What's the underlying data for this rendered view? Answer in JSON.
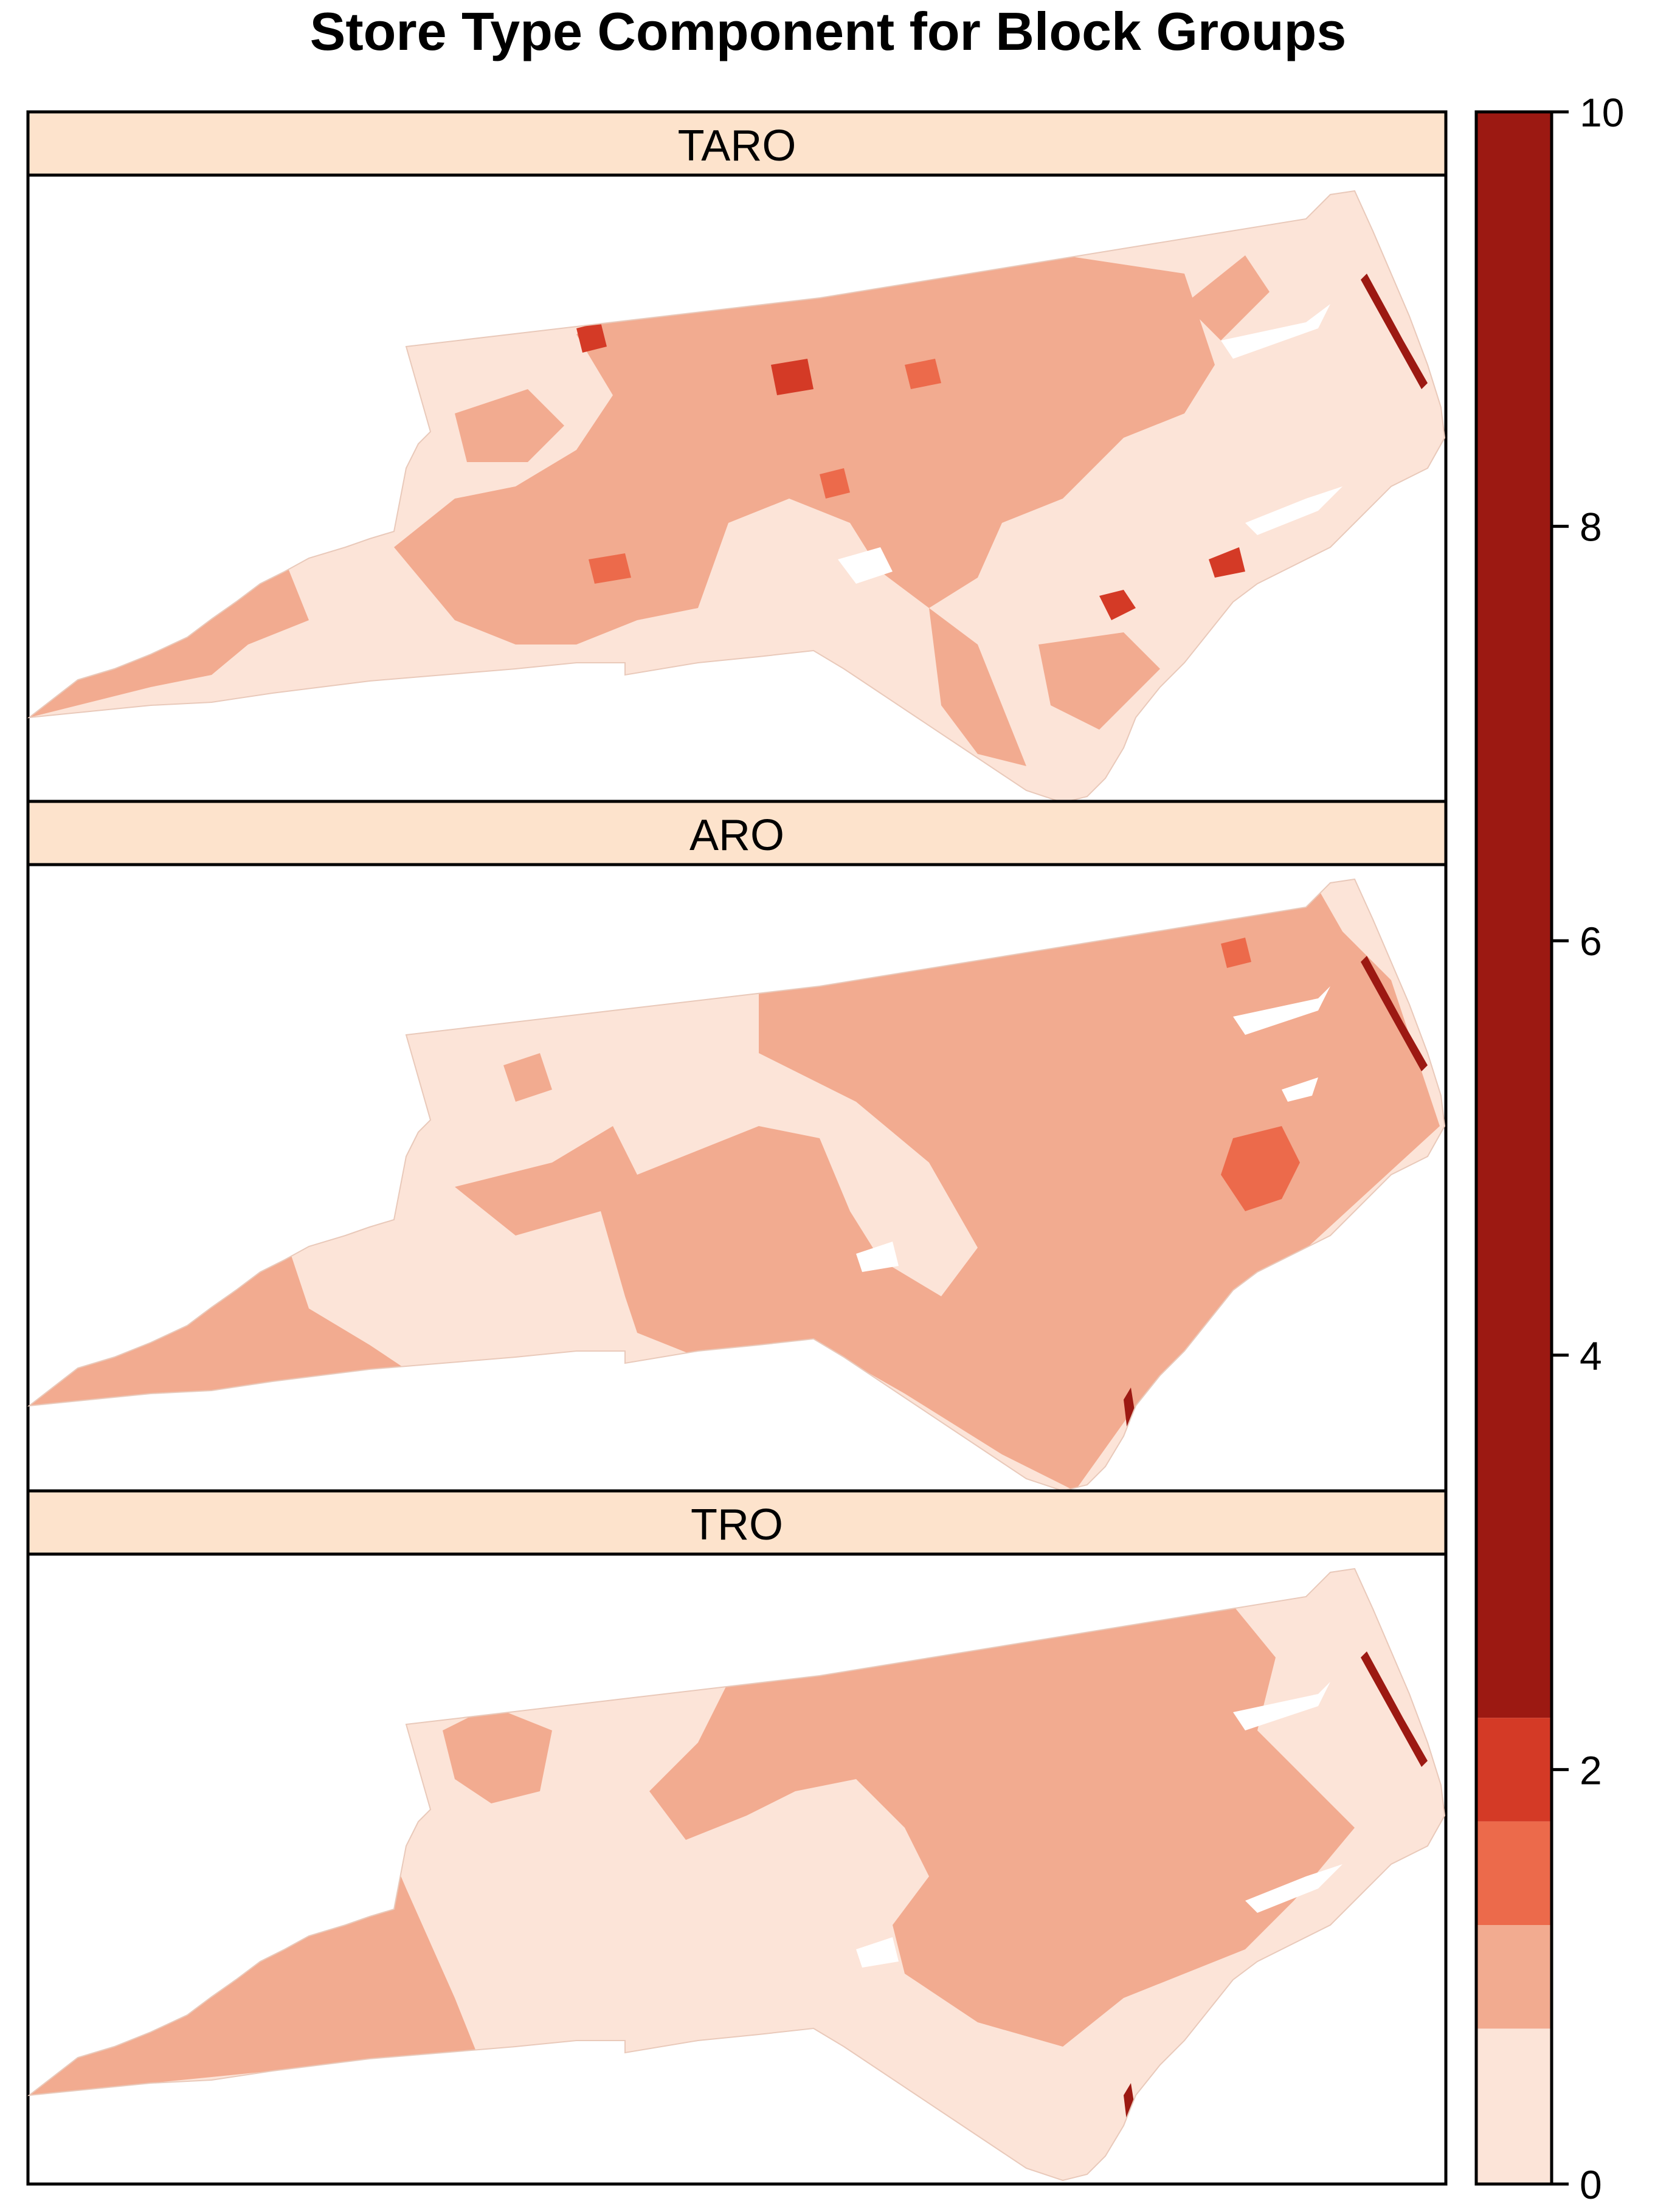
{
  "title": "Store Type Component for Block Groups",
  "panels": [
    {
      "label": "TARO"
    },
    {
      "label": "ARO"
    },
    {
      "label": "TRO"
    }
  ],
  "colorbar": {
    "min": 0,
    "max": 10,
    "ticks": [
      "0",
      "2",
      "4",
      "6",
      "8",
      "10"
    ],
    "bins": [
      {
        "from": 0.0,
        "to": 0.75,
        "color": "#fce4d8"
      },
      {
        "from": 0.75,
        "to": 1.25,
        "color": "#f2ab90"
      },
      {
        "from": 1.25,
        "to": 1.75,
        "color": "#ec6a4b"
      },
      {
        "from": 1.75,
        "to": 2.25,
        "color": "#d43a26"
      },
      {
        "from": 2.25,
        "to": 10.0,
        "color": "#9c1912"
      }
    ]
  },
  "colors": {
    "strip": "#fde3cc",
    "water": "#ffffff",
    "outline": "#000000"
  }
}
